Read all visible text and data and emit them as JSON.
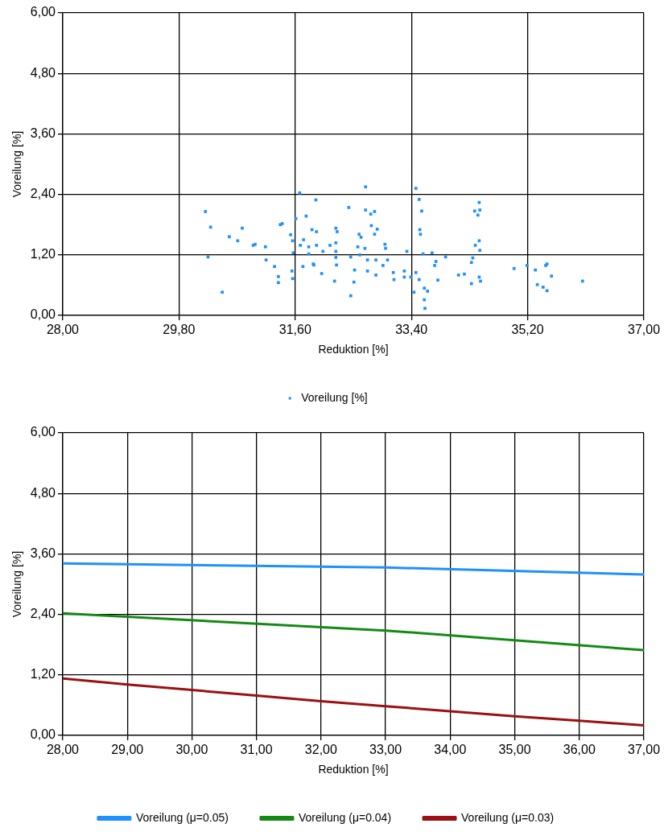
{
  "chart_data": [
    {
      "type": "scatter",
      "xlabel": "Reduktion [%]",
      "ylabel": "Voreilung [%]",
      "marker": "square",
      "grid": true,
      "legend": "bottom",
      "xlim": [
        28,
        37
      ],
      "xticks": [
        {
          "value": 28,
          "label": "28,00"
        },
        {
          "value": 29.8,
          "label": "29,80"
        },
        {
          "value": 31.6,
          "label": "31,60"
        },
        {
          "value": 33.4,
          "label": "33,40"
        },
        {
          "value": 35.2,
          "label": "35,20"
        },
        {
          "value": 37,
          "label": "37,00"
        }
      ],
      "ylim": [
        0,
        6
      ],
      "yticks": [
        {
          "value": 0,
          "label": "0,00"
        },
        {
          "value": 1.2,
          "label": "1,20"
        },
        {
          "value": 2.4,
          "label": "2,40"
        },
        {
          "value": 3.6,
          "label": "3,60"
        },
        {
          "value": 4.8,
          "label": "4,80"
        },
        {
          "value": 6,
          "label": "6,00"
        }
      ],
      "series": [
        {
          "name": "Voreilung [%]",
          "color": "#1e90ff",
          "x": [
            30.21,
            30.29,
            30.25,
            30.47,
            30.58,
            30.78,
            30.71,
            30.95,
            30.98,
            31.14,
            31.15,
            31.28,
            31.34,
            31.34,
            31.37,
            31.4,
            31.53,
            31.56,
            31.57,
            31.56,
            31.55,
            31.67,
            31.61,
            31.77,
            31.73,
            31.68,
            31.81,
            31.72,
            31.86,
            31.93,
            31.92,
            31.81,
            31.89,
            31.93,
            32.03,
            31.88,
            32.01,
            32.14,
            32.23,
            32.25,
            32.23,
            32.23,
            32.23,
            32.24,
            32.21,
            32.43,
            32.46,
            32.46,
            32.51,
            32.52,
            32.69,
            32.69,
            32.77,
            32.83,
            32.59,
            32.62,
            32.57,
            32.6,
            32.78,
            32.87,
            32.68,
            32.72,
            32.72,
            32.85,
            32.85,
            32.83,
            32.99,
            33.0,
            32.96,
            33.13,
            33.29,
            33.29,
            33.12,
            33.33,
            33.03,
            33.47,
            33.52,
            33.56,
            33.53,
            33.54,
            33.58,
            33.72,
            33.47,
            33.39,
            33.52,
            33.6,
            33.6,
            33.61,
            33.44,
            33.65,
            33.76,
            33.78,
            33.81,
            33.93,
            34.13,
            34.22,
            34.33,
            34.35,
            34.33,
            34.39,
            34.45,
            34.46,
            34.45,
            34.47,
            34.38,
            34.43,
            34.46,
            34.45,
            34.99,
            35.19,
            35.32,
            35.48,
            35.5,
            35.57,
            35.35,
            35.44,
            35.5,
            36.05
          ],
          "values": [
            2.06,
            1.75,
            1.16,
            0.46,
            1.56,
            1.73,
            1.48,
            1.39,
            1.41,
            1.36,
            1.1,
            0.97,
            0.77,
            0.65,
            1.8,
            1.82,
            1.6,
            1.48,
            1.24,
            0.73,
            0.88,
            2.43,
            1.92,
            1.97,
            1.5,
            1.39,
            1.36,
            0.97,
            1.7,
            1.66,
            2.29,
            1.22,
            1,
            1.39,
            1.27,
            1.02,
            0.83,
            1.39,
            1.73,
            1.66,
            1.44,
            1.27,
            1.15,
            1.0,
            0.68,
            2.14,
            1.16,
            0.39,
            0.66,
            0.9,
            2.55,
            2.09,
            2.01,
            2.06,
            1.61,
            1.55,
            1.36,
            1.2,
            1.78,
            1.71,
            1.33,
            1.1,
            0.88,
            1.1,
            0.8,
            1.61,
            1.41,
            1.33,
            0.99,
            0.71,
            0.88,
            0.76,
            0.85,
            1.27,
            1.1,
            2.52,
            2.3,
            2.07,
            1.7,
            1.61,
            1.22,
            1.24,
            0.85,
            0.76,
            0.71,
            0.54,
            0.31,
            0.14,
            0.46,
            0.48,
            0.99,
            1.07,
            0.7,
            1.16,
            0.8,
            0.82,
            1.05,
            1.14,
            0.63,
            1.39,
            1.48,
            1.29,
            0.76,
            0.68,
            2.07,
            1.99,
            2.09,
            2.24,
            0.93,
            0.99,
            0.9,
            0.99,
            1.02,
            0.78,
            0.61,
            0.56,
            0.49,
            0.68
          ]
        }
      ]
    },
    {
      "type": "line",
      "xlabel": "Reduktion [%]",
      "ylabel": "Voreilung [%]",
      "marker": "none",
      "line_style": "solid",
      "grid": true,
      "legend": "bottom",
      "xlim": [
        28,
        37
      ],
      "xticks": [
        {
          "value": 28,
          "label": "28,00"
        },
        {
          "value": 29,
          "label": "29,00"
        },
        {
          "value": 30,
          "label": "30,00"
        },
        {
          "value": 31,
          "label": "31,00"
        },
        {
          "value": 32,
          "label": "32,00"
        },
        {
          "value": 33,
          "label": "33,00"
        },
        {
          "value": 34,
          "label": "34,00"
        },
        {
          "value": 35,
          "label": "35,00"
        },
        {
          "value": 36,
          "label": "36,00"
        },
        {
          "value": 37,
          "label": "37,00"
        }
      ],
      "ylim": [
        0,
        6
      ],
      "yticks": [
        {
          "value": 0,
          "label": "0,00"
        },
        {
          "value": 1.2,
          "label": "1,20"
        },
        {
          "value": 2.4,
          "label": "2,40"
        },
        {
          "value": 3.6,
          "label": "3,60"
        },
        {
          "value": 4.8,
          "label": "4,80"
        },
        {
          "value": 6,
          "label": "6,00"
        }
      ],
      "series": [
        {
          "name": "Voreilung (μ=0.05)",
          "color": "#1e90ff",
          "x": [
            28,
            33,
            37
          ],
          "values": [
            3.41,
            3.33,
            3.19
          ]
        },
        {
          "name": "Voreilung (μ=0.04)",
          "color": "#138a13",
          "x": [
            28,
            33,
            37
          ],
          "values": [
            2.42,
            2.08,
            1.69
          ]
        },
        {
          "name": "Voreilung (μ=0.03)",
          "color": "#9b1010",
          "x": [
            28,
            29,
            30,
            31,
            32,
            33,
            34,
            35,
            36,
            37
          ],
          "values": [
            1.13,
            1.01,
            0.9,
            0.79,
            0.68,
            0.58,
            0.48,
            0.38,
            0.29,
            0.2
          ]
        }
      ]
    }
  ]
}
